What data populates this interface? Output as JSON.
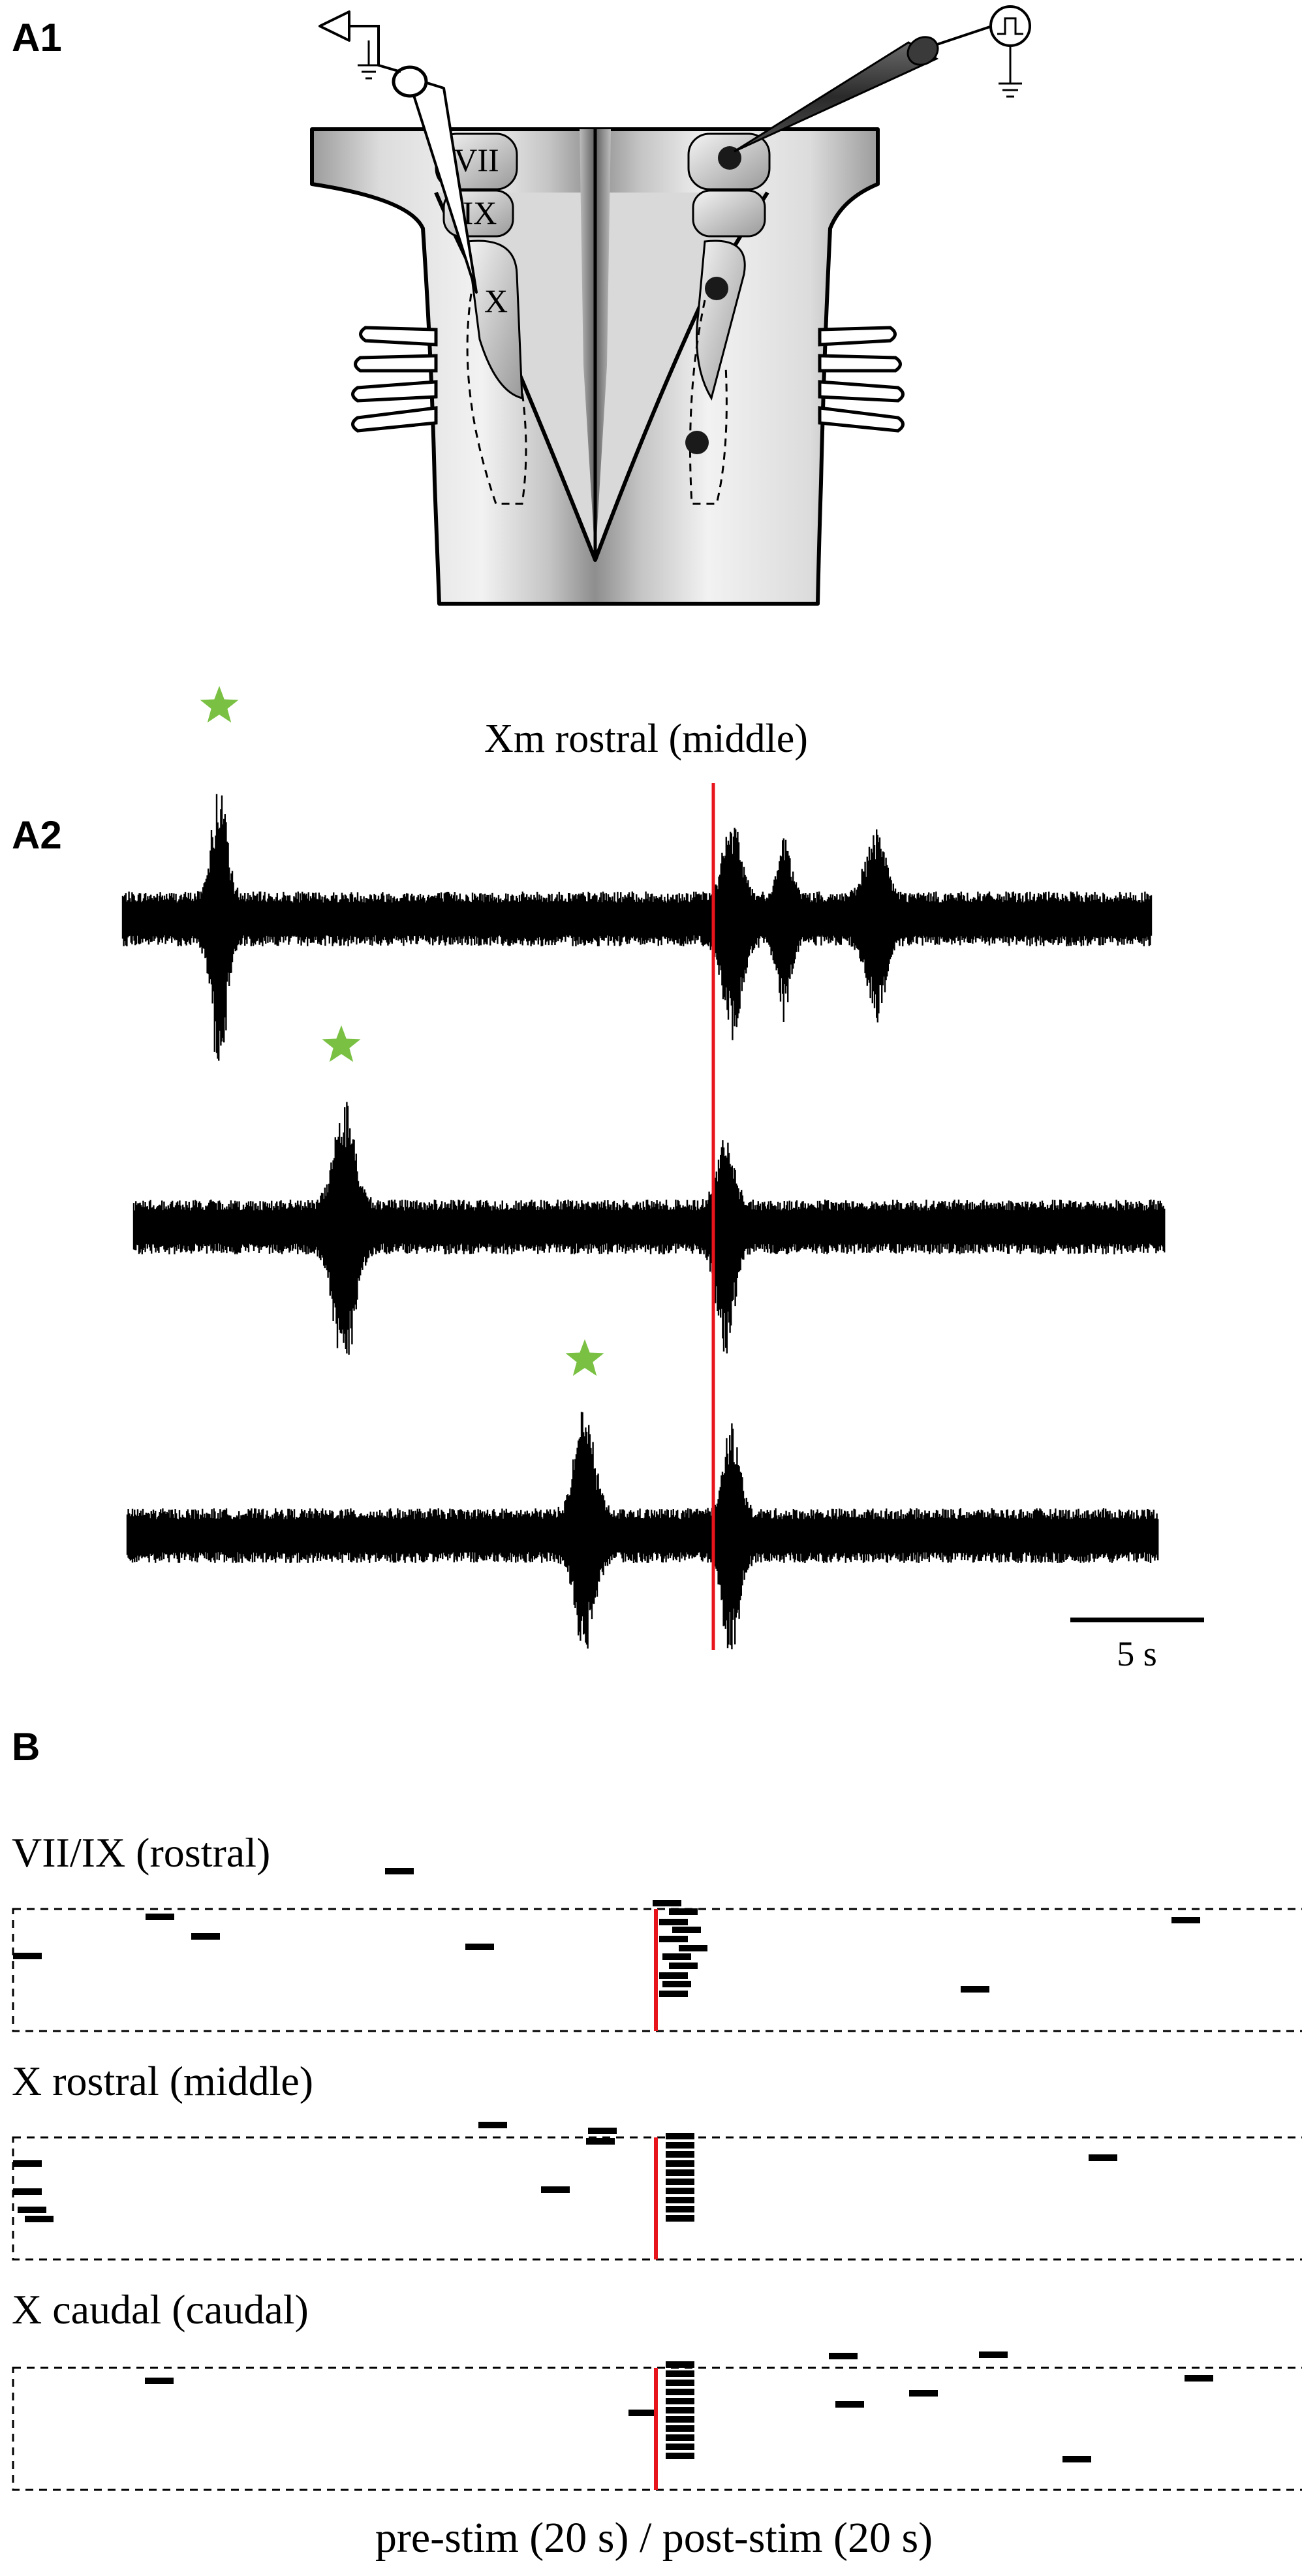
{
  "panel_a1": {
    "label": "A1",
    "nuclei": [
      "VII",
      "IX",
      "X"
    ]
  },
  "panel_a2": {
    "label": "A2",
    "title": "Xm rostral (middle)",
    "scale_bar": "5 s",
    "colors": {
      "stimulus_line": "#e8141b",
      "star": "#7ac143",
      "trace": "#000000"
    }
  },
  "panel_b": {
    "label": "B",
    "groups": [
      {
        "title": "VII/IX (rostral)"
      },
      {
        "title": "X rostral (middle)"
      },
      {
        "title": "X caudal (caudal)"
      }
    ],
    "xlabel": "pre-stim (20 s) / post-stim (20 s)"
  }
}
